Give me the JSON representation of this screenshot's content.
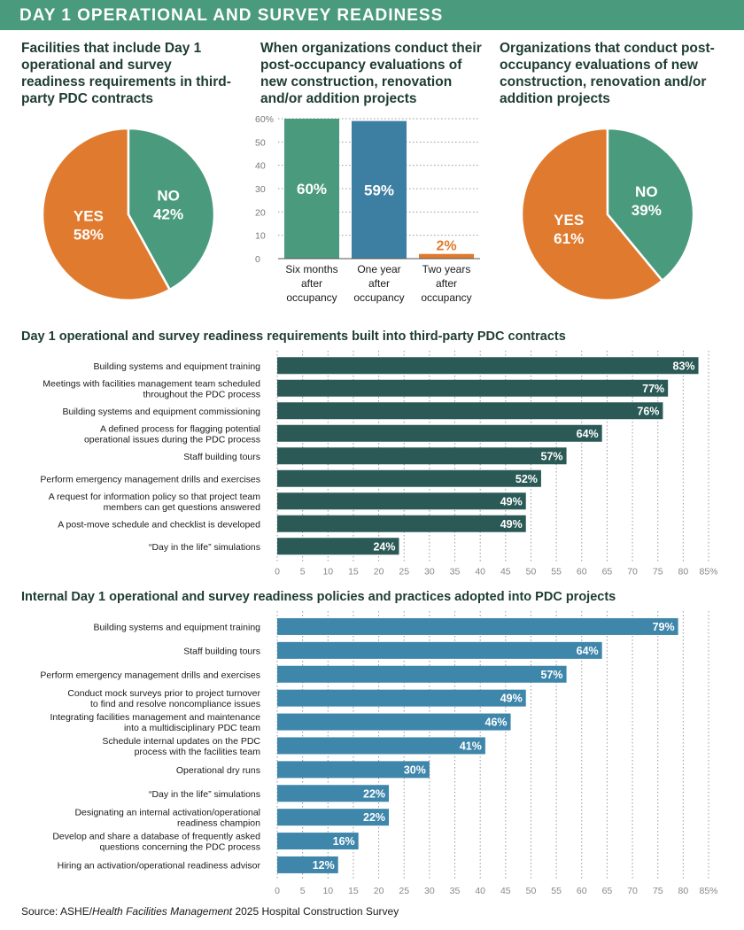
{
  "header": {
    "title": "DAY 1 OPERATIONAL AND SURVEY READINESS"
  },
  "colors": {
    "header_green": "#4a9a7e",
    "orange": "#e07a2e",
    "green": "#4a9a7e",
    "blue": "#3d7ea3",
    "dark_teal": "#2b5a56",
    "medium_blue": "#3f86ab"
  },
  "source": {
    "prefix": "Source: ASHE/",
    "publication": "Health Facilities Management",
    "suffix": " 2025 Hospital Construction Survey"
  },
  "chart_data": [
    {
      "type": "pie",
      "title": "Facilities that include Day 1 operational and survey readiness requirements in third-party PDC contracts",
      "slices": [
        {
          "label": "YES",
          "value": 58,
          "value_label": "58%",
          "color": "#e07a2e"
        },
        {
          "label": "NO",
          "value": 42,
          "value_label": "42%",
          "color": "#4a9a7e"
        }
      ]
    },
    {
      "type": "bar",
      "title": "When organizations conduct their post-occupancy evaluations of new construction, renovation and/or addition projects",
      "categories": [
        [
          "Six months",
          "after",
          "occupancy"
        ],
        [
          "One year",
          "after",
          "occupancy"
        ],
        [
          "Two years",
          "after",
          "occupancy"
        ]
      ],
      "values": [
        60,
        59,
        2
      ],
      "value_labels": [
        "60%",
        "59%",
        "2%"
      ],
      "colors": [
        "#4a9a7e",
        "#3d7ea3",
        "#e07a2e"
      ],
      "ylim": [
        0,
        60
      ],
      "yticks": [
        0,
        10,
        20,
        30,
        40,
        50,
        60
      ],
      "ytick_labels": [
        "0",
        "10",
        "20",
        "30",
        "40",
        "50",
        "60%"
      ],
      "grid": true
    },
    {
      "type": "pie",
      "title": "Organizations that conduct post-occupancy evaluations of new construction, renovation and/or addition projects",
      "slices": [
        {
          "label": "YES",
          "value": 61,
          "value_label": "61%",
          "color": "#e07a2e"
        },
        {
          "label": "NO",
          "value": 39,
          "value_label": "39%",
          "color": "#4a9a7e"
        }
      ]
    },
    {
      "type": "bar",
      "orientation": "horizontal",
      "title": "Day 1 operational and survey readiness requirements built into third-party PDC contracts",
      "color": "#2b5a56",
      "categories": [
        [
          "Building systems and equipment training"
        ],
        [
          "Meetings with facilities management team scheduled",
          "throughout the PDC process"
        ],
        [
          "Building systems and equipment commissioning"
        ],
        [
          "A defined process for flagging potential",
          "operational issues during the PDC process"
        ],
        [
          "Staff building tours"
        ],
        [
          "Perform emergency management drills and exercises"
        ],
        [
          "A request for information policy so that project team",
          "members can get questions answered"
        ],
        [
          "A post-move schedule and checklist is developed"
        ],
        [
          "“Day in the life” simulations"
        ]
      ],
      "values": [
        83,
        77,
        76,
        64,
        57,
        52,
        49,
        49,
        24
      ],
      "value_labels": [
        "83%",
        "77%",
        "76%",
        "64%",
        "57%",
        "52%",
        "49%",
        "49%",
        "24%"
      ],
      "xlim": [
        0,
        85
      ],
      "xticks": [
        0,
        5,
        10,
        15,
        20,
        25,
        30,
        35,
        40,
        45,
        50,
        55,
        60,
        65,
        70,
        75,
        80,
        85
      ],
      "xtick_labels": [
        "0",
        "5",
        "10",
        "15",
        "20",
        "25",
        "30",
        "35",
        "40",
        "45",
        "50",
        "55",
        "60",
        "65",
        "70",
        "75",
        "80",
        "85%"
      ],
      "grid": true
    },
    {
      "type": "bar",
      "orientation": "horizontal",
      "title": "Internal Day 1 operational and survey readiness policies and practices adopted into PDC projects",
      "color": "#3f86ab",
      "categories": [
        [
          "Building systems and equipment training"
        ],
        [
          "Staff building tours"
        ],
        [
          "Perform emergency management drills and exercises"
        ],
        [
          "Conduct mock surveys prior to project turnover",
          "to find and resolve noncompliance issues"
        ],
        [
          "Integrating facilities management and maintenance",
          "into a multidisciplinary PDC team"
        ],
        [
          "Schedule internal updates on the PDC",
          "process with the facilities team"
        ],
        [
          "Operational dry runs"
        ],
        [
          "“Day in the life” simulations"
        ],
        [
          "Designating an internal activation/operational",
          "readiness champion"
        ],
        [
          "Develop and share a database of frequently asked",
          "questions concerning the PDC process"
        ],
        [
          "Hiring an activation/operational readiness advisor"
        ]
      ],
      "values": [
        79,
        64,
        57,
        49,
        46,
        41,
        30,
        22,
        22,
        16,
        12
      ],
      "value_labels": [
        "79%",
        "64%",
        "57%",
        "49%",
        "46%",
        "41%",
        "30%",
        "22%",
        "22%",
        "16%",
        "12%"
      ],
      "xlim": [
        0,
        85
      ],
      "xticks": [
        0,
        5,
        10,
        15,
        20,
        25,
        30,
        35,
        40,
        45,
        50,
        55,
        60,
        65,
        70,
        75,
        80,
        85
      ],
      "xtick_labels": [
        "0",
        "5",
        "10",
        "15",
        "20",
        "25",
        "30",
        "35",
        "40",
        "45",
        "50",
        "55",
        "60",
        "65",
        "70",
        "75",
        "80",
        "85%"
      ],
      "grid": true
    }
  ]
}
